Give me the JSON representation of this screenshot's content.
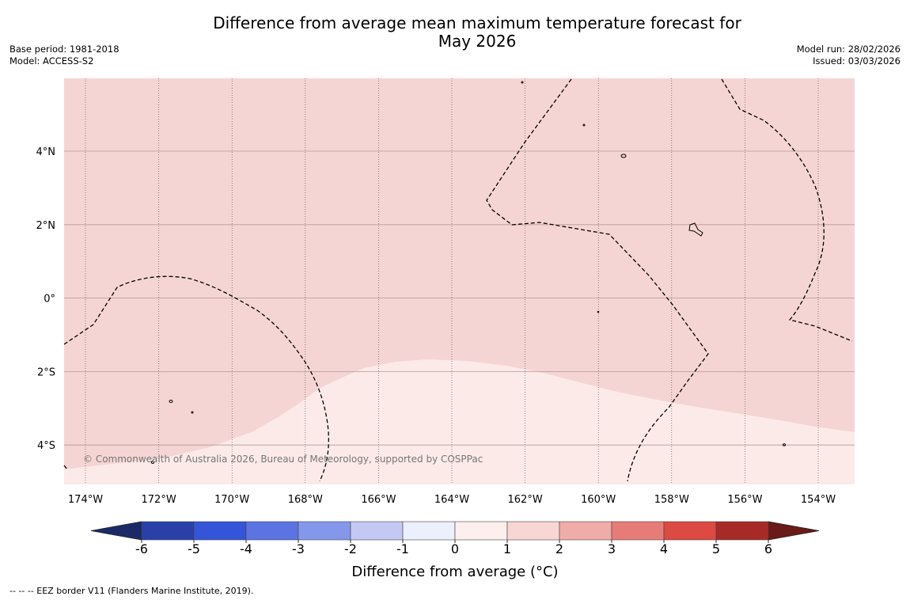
{
  "title_line1": "Difference from average mean maximum temperature forecast for",
  "title_line2": "May 2026",
  "base_period": "Base period: 1981-2018",
  "model": "Model: ACCESS-S2",
  "model_run": "Model run: 28/02/2026",
  "issued": "Issued: 03/03/2026",
  "copyright": "© Commonwealth of Australia 2026, Bureau of Meteorology, supported by COSPPac",
  "map": {
    "lon_labels": [
      "174°W",
      "172°W",
      "170°W",
      "168°W",
      "166°W",
      "164°W",
      "162°W",
      "160°W",
      "158°W",
      "156°W",
      "154°W"
    ],
    "lat_labels": [
      "4°N",
      "2°N",
      "0°",
      "2°S",
      "4°S"
    ],
    "regions": [
      {
        "name": "anomaly 1 to 2",
        "color": "#f5d5d3"
      },
      {
        "name": "anomaly 0 to 1",
        "color": "#fbeae8"
      }
    ]
  },
  "colorbar": {
    "label": "Difference from average (°C)",
    "ticks": [
      "-6",
      "-5",
      "-4",
      "-3",
      "-2",
      "-1",
      "0",
      "1",
      "2",
      "3",
      "4",
      "5",
      "6"
    ],
    "below_color": "#1b2a66",
    "above_color": "#6a1a17",
    "colors": [
      "#2a40a8",
      "#3355d8",
      "#5b74e2",
      "#8597ea",
      "#c3c9f3",
      "#eceffc",
      "#fcefed",
      "#f8d6d4",
      "#efaca9",
      "#e67c78",
      "#dc4a43",
      "#a82a26"
    ]
  },
  "footer": "--  --  -- EEZ border V11 (Flanders Marine Institute, 2019)."
}
